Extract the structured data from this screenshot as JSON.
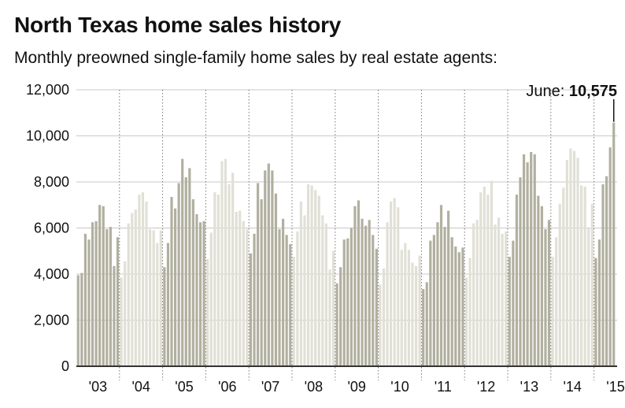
{
  "title": "North Texas home sales history",
  "subtitle": "Monthly preowned single-family home sales by real estate agents:",
  "chart_data": {
    "type": "bar",
    "title": "North Texas home sales history",
    "subtitle": "Monthly preowned single-family home sales by real estate agents:",
    "xlabel": "",
    "ylabel": "",
    "ylim": [
      0,
      12000
    ],
    "y_ticks": [
      0,
      2000,
      4000,
      6000,
      8000,
      10000,
      12000
    ],
    "y_tick_labels": [
      "0",
      "2,000",
      "4,000",
      "6,000",
      "8,000",
      "10,000",
      "12,000"
    ],
    "grid": true,
    "x_tick_labels": [
      "'03",
      "'04",
      "'05",
      "'06",
      "'07",
      "'08",
      "'09",
      "'10",
      "'11",
      "'12",
      "'13",
      "'14",
      "'15"
    ],
    "years": [
      {
        "label": "'03",
        "values": [
          3950,
          4050,
          5750,
          5500,
          6250,
          6300,
          7000,
          6950,
          5950,
          6050,
          4350,
          5600
        ]
      },
      {
        "label": "'04",
        "values": [
          3850,
          4550,
          6200,
          6650,
          6800,
          7450,
          7550,
          7150,
          5950,
          5900,
          5350,
          5900
        ]
      },
      {
        "label": "'05",
        "values": [
          4300,
          5350,
          7350,
          6850,
          7950,
          9000,
          8200,
          8600,
          7250,
          6600,
          6250,
          6300
        ]
      },
      {
        "label": "'06",
        "values": [
          4650,
          5800,
          7550,
          7450,
          8900,
          9000,
          7900,
          8400,
          6700,
          6750,
          6300,
          5950
        ]
      },
      {
        "label": "'07",
        "values": [
          4900,
          5750,
          7950,
          7250,
          8500,
          8800,
          8500,
          7500,
          5950,
          6400,
          5700,
          5300
        ]
      },
      {
        "label": "'08",
        "values": [
          4750,
          5850,
          7150,
          6550,
          7900,
          7850,
          7650,
          7400,
          6550,
          6200,
          4200,
          5000
        ]
      },
      {
        "label": "'09",
        "values": [
          3600,
          4300,
          5500,
          5550,
          6000,
          6950,
          7200,
          6400,
          6100,
          6350,
          5700,
          5100
        ]
      },
      {
        "label": "'10",
        "values": [
          3550,
          4250,
          6250,
          7150,
          7300,
          6900,
          5050,
          5350,
          5050,
          4500,
          4350,
          4800
        ]
      },
      {
        "label": "'11",
        "values": [
          3350,
          3650,
          5450,
          5700,
          6250,
          7000,
          6050,
          6750,
          5600,
          5200,
          4950,
          5150
        ]
      },
      {
        "label": "'12",
        "values": [
          3850,
          4700,
          6200,
          6350,
          7550,
          7800,
          7450,
          8050,
          6150,
          6450,
          5750,
          5850
        ]
      },
      {
        "label": "'13",
        "values": [
          4750,
          5450,
          7450,
          8200,
          9200,
          8850,
          9300,
          9200,
          7400,
          6950,
          5950,
          6350
        ]
      },
      {
        "label": "'14",
        "values": [
          4750,
          5600,
          7050,
          7750,
          8950,
          9450,
          9350,
          9050,
          7850,
          7800,
          6000,
          7050
        ]
      },
      {
        "label": "'15",
        "values": [
          4700,
          5500,
          7900,
          8250,
          9500,
          10575
        ]
      }
    ],
    "annotation": {
      "label": "June: ",
      "value_label": "10,575",
      "value": 10575,
      "year": "'15",
      "month_index": 5
    },
    "colors": {
      "dark_bar": "#b1b0a0",
      "light_bar": "#e1e0d6",
      "grid": "#c8c8c8",
      "divider": "#777777",
      "axis": "#333333",
      "text": "#111111"
    }
  }
}
